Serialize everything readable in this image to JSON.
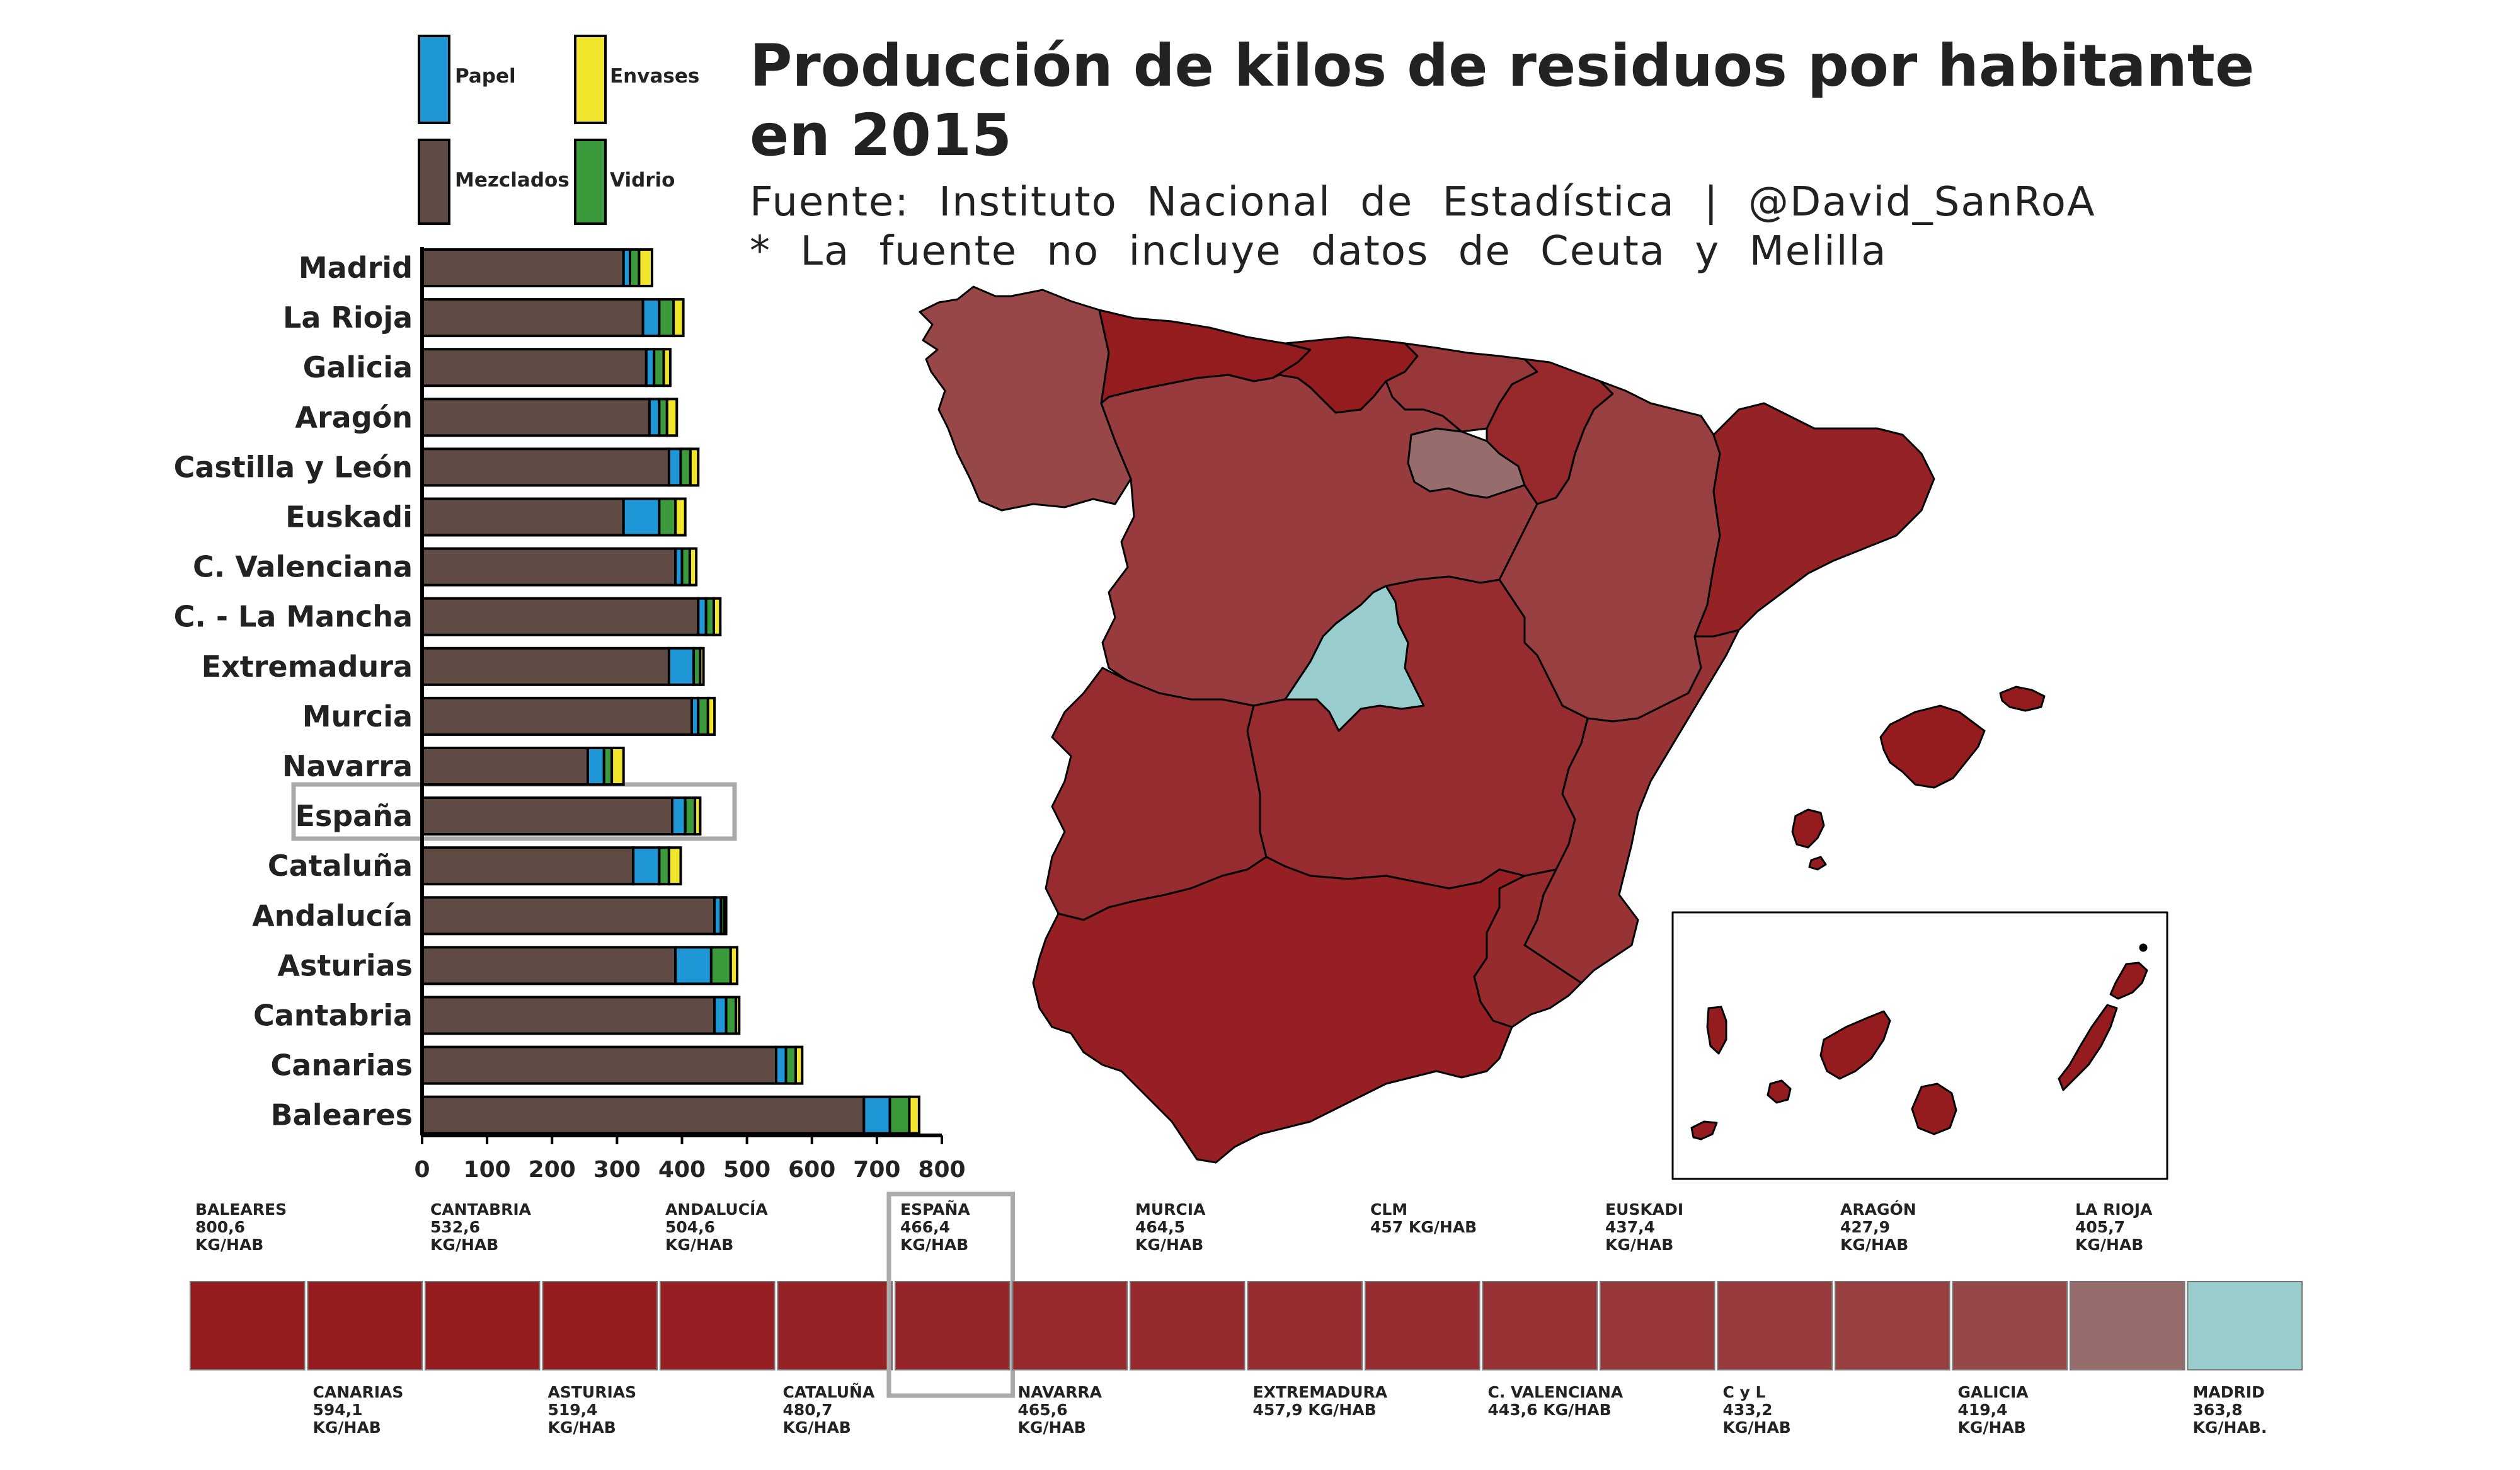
{
  "title": [
    "Producción de kilos de residuos por habitante",
    "en 2015"
  ],
  "source": "Fuente: Instituto Nacional de Estadística | @David_SanRoA",
  "note": "* La fuente no incluye datos de Ceuta y Melilla",
  "legend": {
    "papel": "Papel",
    "envases": "Envases",
    "mezclados": "Mezclados",
    "vidrio": "Vidrio"
  },
  "colors": {
    "mezclados": "#5f4b44",
    "papel": "#1f96d6",
    "vidrio": "#3b9a3b",
    "envases": "#f2e62d",
    "highlight": "#aaaaaa",
    "scale_high": "#941c1f",
    "scale_low": "#966c6c",
    "madrid": "#99cccc"
  },
  "chart_data": {
    "type": "bar",
    "orientation": "horizontal",
    "stacked": true,
    "categories": [
      "Madrid",
      "La Rioja",
      "Galicia",
      "Aragón",
      "Castilla y León",
      "Euskadi",
      "C. Valenciana",
      "C. - La Mancha",
      "Extremadura",
      "Murcia",
      "Navarra",
      "España",
      "Cataluña",
      "Andalucía",
      "Asturias",
      "Cantabria",
      "Canarias",
      "Baleares"
    ],
    "series": [
      {
        "name": "Mezclados",
        "color": "#5f4b44",
        "values": [
          310,
          340,
          345,
          350,
          380,
          310,
          390,
          425,
          380,
          415,
          255,
          385,
          325,
          450,
          390,
          450,
          545,
          680
        ]
      },
      {
        "name": "Papel",
        "color": "#1f96d6",
        "values": [
          10,
          25,
          12,
          15,
          18,
          55,
          10,
          12,
          38,
          10,
          25,
          20,
          40,
          10,
          55,
          18,
          15,
          40
        ]
      },
      {
        "name": "Vidrio",
        "color": "#3b9a3b",
        "values": [
          14,
          22,
          15,
          12,
          15,
          25,
          12,
          12,
          10,
          15,
          12,
          15,
          15,
          5,
          30,
          15,
          15,
          30
        ]
      },
      {
        "name": "Envases",
        "color": "#f2e62d",
        "values": [
          20,
          15,
          10,
          15,
          12,
          15,
          10,
          10,
          5,
          10,
          18,
          8,
          18,
          3,
          10,
          5,
          10,
          15
        ]
      }
    ],
    "highlight": "España",
    "xticks": [
      0,
      100,
      200,
      300,
      400,
      500,
      600,
      700,
      800
    ],
    "xlim": [
      0,
      800
    ]
  },
  "scale_items": [
    {
      "name": "BALEARES",
      "value": "800,6",
      "unit": "KG/HAB",
      "pos": "top",
      "color": "#941c1f"
    },
    {
      "name": "CANARIAS",
      "value": "594,1",
      "unit": "KG/HAB",
      "pos": "bottom",
      "color": "#941c1f"
    },
    {
      "name": "CANTABRIA",
      "value": "532,6",
      "unit": "KG/HAB",
      "pos": "top",
      "color": "#941c1f"
    },
    {
      "name": "ASTURIAS",
      "value": "519,4",
      "unit": "KG/HAB",
      "pos": "bottom",
      "color": "#941c1f"
    },
    {
      "name": "ANDALUCÍA",
      "value": "504,6",
      "unit": "KG/HAB",
      "pos": "top",
      "color": "#951f22"
    },
    {
      "name": "CATALUÑA",
      "value": "480,7",
      "unit": "KG/HAB",
      "pos": "bottom",
      "color": "#952225"
    },
    {
      "name": "ESPAÑA",
      "value": "466,4",
      "unit": "KG/HAB",
      "pos": "top",
      "color": "#962529",
      "highlight": true
    },
    {
      "name": "NAVARRA",
      "value": "465,6",
      "unit": "KG/HAB",
      "pos": "bottom",
      "color": "#97282b"
    },
    {
      "name": "MURCIA",
      "value": "464,5",
      "unit": "KG/HAB",
      "pos": "top",
      "color": "#972a2d"
    },
    {
      "name": "EXTREMADURA",
      "value": "457,9 KG/HAB",
      "unit": "",
      "pos": "bottom",
      "color": "#972c30"
    },
    {
      "name": "CLM",
      "value": "457 KG/HAB",
      "unit": "",
      "pos": "top",
      "color": "#972c30"
    },
    {
      "name": "C. VALENCIANA",
      "value": "443,6 KG/HAB",
      "unit": "",
      "pos": "bottom",
      "color": "#973235"
    },
    {
      "name": "EUSKADI",
      "value": "437,4",
      "unit": "KG/HAB",
      "pos": "top",
      "color": "#97373a"
    },
    {
      "name": "C y L",
      "value": "433,2",
      "unit": "KG/HAB",
      "pos": "bottom",
      "color": "#983b3e"
    },
    {
      "name": "ARAGÓN",
      "value": "427,9",
      "unit": "KG/HAB",
      "pos": "top",
      "color": "#983f42"
    },
    {
      "name": "GALICIA",
      "value": "419,4",
      "unit": "KG/HAB",
      "pos": "bottom",
      "color": "#984749"
    },
    {
      "name": "LA RIOJA",
      "value": "405,7",
      "unit": "KG/HAB",
      "pos": "top",
      "color": "#966c6c"
    },
    {
      "name": "MADRID",
      "value": "363,8",
      "unit": "KG/HAB.",
      "pos": "bottom",
      "color": "#99cccc"
    }
  ],
  "map_regions": [
    {
      "name": "Galicia",
      "color": "#984749"
    },
    {
      "name": "Asturias",
      "color": "#941c1f"
    },
    {
      "name": "Cantabria",
      "color": "#941c1f"
    },
    {
      "name": "Euskadi",
      "color": "#97373a"
    },
    {
      "name": "Navarra",
      "color": "#97282b"
    },
    {
      "name": "La Rioja",
      "color": "#966c6c"
    },
    {
      "name": "Castilla y León",
      "color": "#983b3e"
    },
    {
      "name": "Aragón",
      "color": "#983f42"
    },
    {
      "name": "Cataluña",
      "color": "#952225"
    },
    {
      "name": "Madrid",
      "color": "#99cccc"
    },
    {
      "name": "Extremadura",
      "color": "#972c30"
    },
    {
      "name": "Castilla-La Mancha",
      "color": "#972c30"
    },
    {
      "name": "C. Valenciana",
      "color": "#973235"
    },
    {
      "name": "Murcia",
      "color": "#972a2d"
    },
    {
      "name": "Andalucía",
      "color": "#951f22"
    },
    {
      "name": "Baleares",
      "color": "#941c1f"
    },
    {
      "name": "Canarias",
      "color": "#941c1f"
    }
  ]
}
